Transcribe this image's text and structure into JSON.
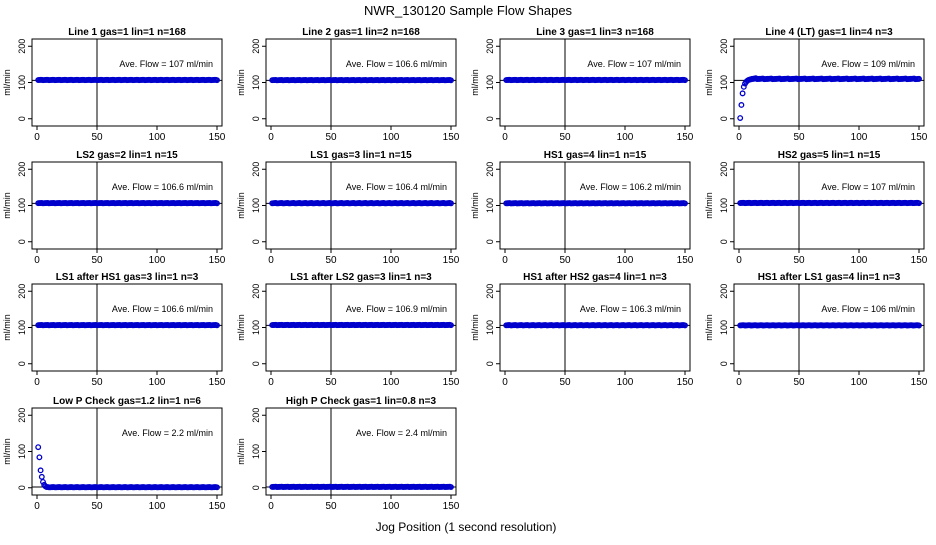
{
  "page": {
    "title": "NWR_130120  Sample Flow Shapes",
    "xlabel": "Jog Position (1 second resolution)"
  },
  "chart_data": [
    {
      "type": "scatter",
      "title": "Line 1 gas=1 lin=1 n=168",
      "annotation": "Ave. Flow =  107  ml/min",
      "ylabel": "ml/min",
      "xlim": [
        0,
        150
      ],
      "ylim": [
        -20,
        220
      ],
      "xticks": [
        0,
        50,
        100,
        150
      ],
      "yticks": [
        0,
        100,
        200
      ],
      "vline": 50,
      "hline": 106,
      "shape": "flat",
      "value": 107
    },
    {
      "type": "scatter",
      "title": "Line 2 gas=1 lin=2 n=168",
      "annotation": "Ave. Flow =  106.6  ml/min",
      "ylabel": "ml/min",
      "xlim": [
        0,
        150
      ],
      "ylim": [
        -20,
        220
      ],
      "xticks": [
        0,
        50,
        100,
        150
      ],
      "yticks": [
        0,
        100,
        200
      ],
      "vline": 50,
      "hline": 106,
      "shape": "flat",
      "value": 106.6
    },
    {
      "type": "scatter",
      "title": "Line 3 gas=1 lin=3 n=168",
      "annotation": "Ave. Flow =  107  ml/min",
      "ylabel": "ml/min",
      "xlim": [
        0,
        150
      ],
      "ylim": [
        -20,
        220
      ],
      "xticks": [
        0,
        50,
        100,
        150
      ],
      "yticks": [
        0,
        100,
        200
      ],
      "vline": 50,
      "hline": 106,
      "shape": "flat",
      "value": 107
    },
    {
      "type": "scatter",
      "title": "Line 4 (LT) gas=1 lin=4 n=3",
      "annotation": "Ave. Flow =  109  ml/min",
      "ylabel": "ml/min",
      "xlim": [
        0,
        150
      ],
      "ylim": [
        -20,
        220
      ],
      "xticks": [
        0,
        50,
        100,
        150
      ],
      "yticks": [
        0,
        100,
        200
      ],
      "vline": 50,
      "hline": 106,
      "shape": "rise",
      "value": 109
    },
    {
      "type": "scatter",
      "title": "LS2 gas=2 lin=1 n=15",
      "annotation": "Ave. Flow =  106.6  ml/min",
      "ylabel": "ml/min",
      "xlim": [
        0,
        150
      ],
      "ylim": [
        -20,
        220
      ],
      "xticks": [
        0,
        50,
        100,
        150
      ],
      "yticks": [
        0,
        100,
        200
      ],
      "vline": 50,
      "hline": 106,
      "shape": "flat",
      "value": 106.6
    },
    {
      "type": "scatter",
      "title": "LS1 gas=3 lin=1 n=15",
      "annotation": "Ave. Flow =  106.4  ml/min",
      "ylabel": "ml/min",
      "xlim": [
        0,
        150
      ],
      "ylim": [
        -20,
        220
      ],
      "xticks": [
        0,
        50,
        100,
        150
      ],
      "yticks": [
        0,
        100,
        200
      ],
      "vline": 50,
      "hline": 106,
      "shape": "flat",
      "value": 106.4
    },
    {
      "type": "scatter",
      "title": "HS1 gas=4 lin=1 n=15",
      "annotation": "Ave. Flow =  106.2  ml/min",
      "ylabel": "ml/min",
      "xlim": [
        0,
        150
      ],
      "ylim": [
        -20,
        220
      ],
      "xticks": [
        0,
        50,
        100,
        150
      ],
      "yticks": [
        0,
        100,
        200
      ],
      "vline": 50,
      "hline": 106,
      "shape": "flat",
      "value": 106.2
    },
    {
      "type": "scatter",
      "title": "HS2 gas=5 lin=1 n=15",
      "annotation": "Ave. Flow =  107  ml/min",
      "ylabel": "ml/min",
      "xlim": [
        0,
        150
      ],
      "ylim": [
        -20,
        220
      ],
      "xticks": [
        0,
        50,
        100,
        150
      ],
      "yticks": [
        0,
        100,
        200
      ],
      "vline": 50,
      "hline": 106,
      "shape": "flat",
      "value": 107
    },
    {
      "type": "scatter",
      "title": "LS1 after HS1 gas=3 lin=1 n=3",
      "annotation": "Ave. Flow =  106.6  ml/min",
      "ylabel": "ml/min",
      "xlim": [
        0,
        150
      ],
      "ylim": [
        -20,
        220
      ],
      "xticks": [
        0,
        50,
        100,
        150
      ],
      "yticks": [
        0,
        100,
        200
      ],
      "vline": 50,
      "hline": 106,
      "shape": "flat",
      "value": 106.6
    },
    {
      "type": "scatter",
      "title": "LS1 after LS2 gas=3 lin=1 n=3",
      "annotation": "Ave. Flow =  106.9  ml/min",
      "ylabel": "ml/min",
      "xlim": [
        0,
        150
      ],
      "ylim": [
        -20,
        220
      ],
      "xticks": [
        0,
        50,
        100,
        150
      ],
      "yticks": [
        0,
        100,
        200
      ],
      "vline": 50,
      "hline": 106,
      "shape": "flat",
      "value": 106.9
    },
    {
      "type": "scatter",
      "title": "HS1 after HS2 gas=4 lin=1 n=3",
      "annotation": "Ave. Flow =  106.3  ml/min",
      "ylabel": "ml/min",
      "xlim": [
        0,
        150
      ],
      "ylim": [
        -20,
        220
      ],
      "xticks": [
        0,
        50,
        100,
        150
      ],
      "yticks": [
        0,
        100,
        200
      ],
      "vline": 50,
      "hline": 106,
      "shape": "flat",
      "value": 106.3
    },
    {
      "type": "scatter",
      "title": "HS1 after LS1 gas=4 lin=1 n=3",
      "annotation": "Ave. Flow =  106  ml/min",
      "ylabel": "ml/min",
      "xlim": [
        0,
        150
      ],
      "ylim": [
        -20,
        220
      ],
      "xticks": [
        0,
        50,
        100,
        150
      ],
      "yticks": [
        0,
        100,
        200
      ],
      "vline": 50,
      "hline": 106,
      "shape": "flat",
      "value": 106
    },
    {
      "type": "scatter",
      "title": "Low P Check gas=1.2 lin=1 n=6",
      "annotation": "Ave. Flow =  2.2  ml/min",
      "ylabel": "ml/min",
      "xlim": [
        0,
        150
      ],
      "ylim": [
        -20,
        220
      ],
      "xticks": [
        0,
        50,
        100,
        150
      ],
      "yticks": [
        0,
        100,
        200
      ],
      "vline": 50,
      "hline": 2,
      "shape": "decay",
      "value": 2.2
    },
    {
      "type": "scatter",
      "title": "High P Check gas=1 lin=0.8 n=3",
      "annotation": "Ave. Flow =  2.4  ml/min",
      "ylabel": "ml/min",
      "xlim": [
        0,
        150
      ],
      "ylim": [
        -20,
        220
      ],
      "xticks": [
        0,
        50,
        100,
        150
      ],
      "yticks": [
        0,
        100,
        200
      ],
      "vline": 50,
      "hline": 2,
      "shape": "flat",
      "value": 2.4
    }
  ],
  "colors": {
    "points": "#0000cc",
    "axes": "#000000"
  }
}
